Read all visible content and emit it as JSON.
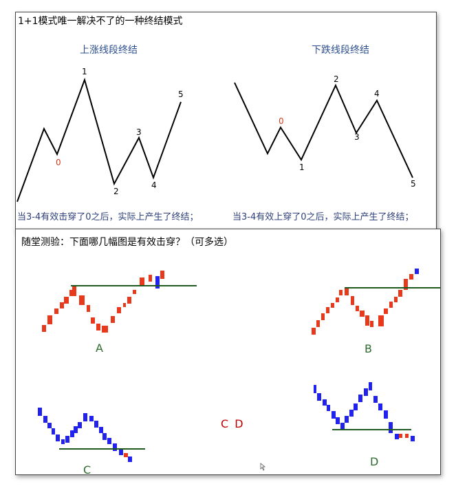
{
  "top": {
    "title": "1+1模式唯一解决不了的一种终结模式",
    "up_title": "上涨线段终结",
    "down_title": "下跌线段终结",
    "up_note": "当3-4有效击穿了0之后，实际上产生了终结；",
    "down_note": "当3-4有效上穿了0之后，实际上产生了终结；",
    "up_labels": [
      "0",
      "1",
      "2",
      "3",
      "4",
      "5"
    ],
    "down_labels": [
      "0",
      "1",
      "2",
      "3",
      "4",
      "5"
    ],
    "zero_color": "#d03a1e"
  },
  "bottom": {
    "title": "随堂测验：下面哪几幅图是有效击穿？（可多选）",
    "letters": [
      "A",
      "B",
      "C",
      "D"
    ],
    "answer": "C D",
    "colors": {
      "red": "#e8391c",
      "blue": "#2222ee",
      "line": "#1e5a1e",
      "answer": "#c00000"
    }
  }
}
